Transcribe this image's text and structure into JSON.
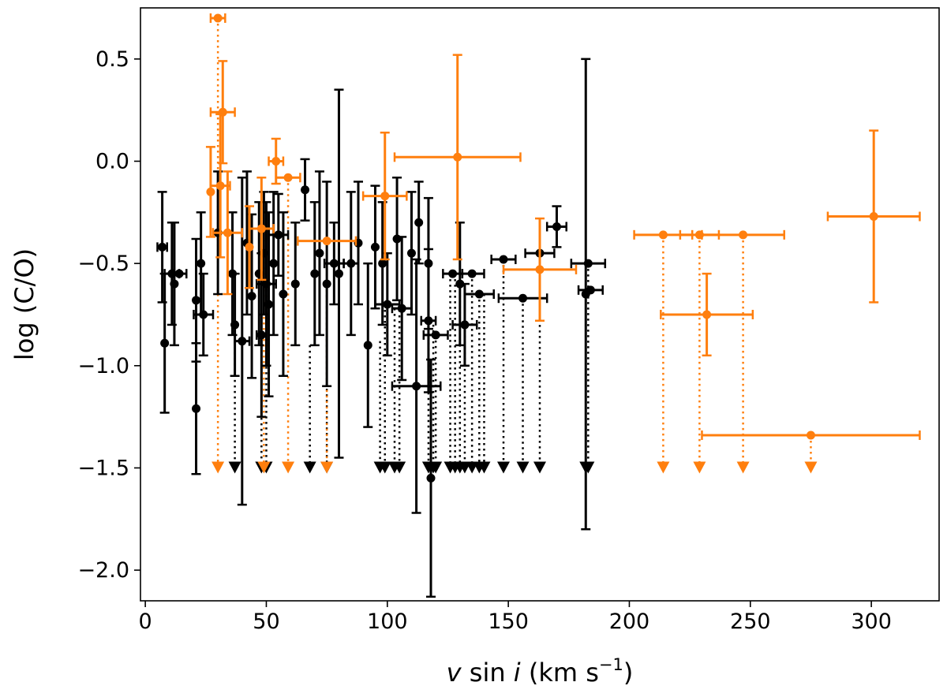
{
  "chart_data": {
    "type": "scatter",
    "xlabel": {
      "v": "v",
      "sin": "sin",
      "i": "i",
      "unit": "(km s",
      "exp": "−1",
      "close": ")"
    },
    "ylabel": "log (C/O)",
    "xlim": [
      -2,
      328
    ],
    "ylim": [
      -2.15,
      0.75
    ],
    "xticks": [
      0,
      50,
      100,
      150,
      200,
      250,
      300
    ],
    "xtick_labels": [
      "0",
      "50",
      "100",
      "150",
      "200",
      "250",
      "300"
    ],
    "yticks": [
      0.5,
      0.0,
      -0.5,
      -1.0,
      -1.5,
      -2.0
    ],
    "ytick_labels": [
      "0.5",
      "0.0",
      "−0.5",
      "−1.0",
      "−1.5",
      "−2.0"
    ],
    "grid": false,
    "colors": {
      "black": "#000000",
      "orange": "#ff7f0e"
    },
    "series": [
      {
        "color": "black",
        "points": [
          {
            "x": 8,
            "y": -0.89,
            "yerr": 0.34
          },
          {
            "x": 7,
            "y": -0.42,
            "yerr": 0.27,
            "xerr": 2
          },
          {
            "x": 11,
            "y": -0.55,
            "yerr": 0.25,
            "xerr": 3
          },
          {
            "x": 12,
            "y": -0.6,
            "yerr": 0.3
          },
          {
            "x": 14,
            "y": -0.55,
            "xerr": 3
          },
          {
            "x": 21,
            "y": -1.21,
            "yerr": 0.32
          },
          {
            "x": 21,
            "y": -0.68,
            "yerr": 0.3
          },
          {
            "x": 23,
            "y": -0.5,
            "yerr": 0.25
          },
          {
            "x": 24,
            "y": -0.75,
            "yerr": 0.2,
            "xerr": 4
          },
          {
            "x": 30,
            "y": -0.35,
            "yerr": 0.3
          },
          {
            "x": 36,
            "y": -0.55,
            "yerr": 0.3
          },
          {
            "x": 37,
            "y": -0.8,
            "yerr": 0.25
          },
          {
            "x": 40,
            "y": -0.88,
            "yerr": 0.8,
            "xerr": 3
          },
          {
            "x": 42,
            "y": -0.4,
            "yerr": 0.35
          },
          {
            "x": 44,
            "y": -0.66,
            "yerr": 0.4
          },
          {
            "x": 47,
            "y": -0.55,
            "yerr": 0.35
          },
          {
            "x": 48,
            "y": -0.85,
            "yerr": 0.4,
            "xerr": 2
          },
          {
            "x": 49,
            "y": -0.45,
            "yerr": 0.3
          },
          {
            "x": 50,
            "y": -0.6,
            "yerr": 0.4,
            "xerr": 4
          },
          {
            "x": 51,
            "y": -0.7,
            "yerr": 0.45
          },
          {
            "x": 53,
            "y": -0.5,
            "yerr": 0.35
          },
          {
            "x": 55,
            "y": -0.36,
            "yerr": 0.2,
            "xerr": 4
          },
          {
            "x": 57,
            "y": -0.65,
            "yerr": 0.4
          },
          {
            "x": 62,
            "y": -0.6,
            "yerr": 0.3
          },
          {
            "x": 66,
            "y": -0.14,
            "yerr": 0.15
          },
          {
            "x": 70,
            "y": -0.55,
            "yerr": 0.35
          },
          {
            "x": 72,
            "y": -0.45,
            "yerr": 0.4
          },
          {
            "x": 75,
            "y": -0.6,
            "yerr": 0.5
          },
          {
            "x": 78,
            "y": -0.5,
            "yerr": 0.2,
            "xerr": 4
          },
          {
            "x": 80,
            "y": -0.55,
            "yerr": 0.9
          },
          {
            "x": 85,
            "y": -0.5,
            "yerr": 0.35,
            "xerr": 3
          },
          {
            "x": 88,
            "y": -0.4,
            "yerr": 0.3
          },
          {
            "x": 92,
            "y": -0.9,
            "yerr": 0.4
          },
          {
            "x": 95,
            "y": -0.42,
            "yerr": 0.3
          },
          {
            "x": 98,
            "y": -0.5,
            "yerr": 0.3
          },
          {
            "x": 100,
            "y": -0.7,
            "yerr": 0.25,
            "xerr": 5
          },
          {
            "x": 104,
            "y": -0.38,
            "yerr": 0.3
          },
          {
            "x": 106,
            "y": -0.72,
            "yerr": 0.35,
            "xerr": 4
          },
          {
            "x": 110,
            "y": -0.45,
            "yerr": 0.3
          },
          {
            "x": 112,
            "y": -1.1,
            "yerr": 0.62,
            "xerr": 10
          },
          {
            "x": 113,
            "y": -0.3,
            "yerr": 0.2
          },
          {
            "x": 117,
            "y": -0.5,
            "yerr": 0.32
          },
          {
            "x": 117,
            "y": -0.78,
            "yerr": 0.35,
            "xerr": 3
          },
          {
            "x": 118,
            "y": -1.55,
            "yerr": 0.58
          },
          {
            "x": 120,
            "y": -0.85,
            "xerr": 5
          },
          {
            "x": 127,
            "y": -0.55,
            "xerr": 4
          },
          {
            "x": 130,
            "y": -0.6,
            "yerr": 0.3
          },
          {
            "x": 132,
            "y": -0.8,
            "yerr": 0.2,
            "xerr": 5
          },
          {
            "x": 135,
            "y": -0.55,
            "xerr": 5
          },
          {
            "x": 138,
            "y": -0.65,
            "xerr": 6
          },
          {
            "x": 148,
            "y": -0.48,
            "xerr": 5
          },
          {
            "x": 156,
            "y": -0.67,
            "xerr": 10
          },
          {
            "x": 163,
            "y": -0.45,
            "xerr": 6
          },
          {
            "x": 170,
            "y": -0.32,
            "yerr": 0.1,
            "xerr": 4
          },
          {
            "x": 182,
            "y": -0.65,
            "yerr": 1.15
          },
          {
            "x": 183,
            "y": -0.5,
            "xerr": 7
          },
          {
            "x": 184,
            "y": -0.63,
            "xerr": 5
          }
        ]
      },
      {
        "color": "orange",
        "points": [
          {
            "x": 30,
            "y": 0.7,
            "xerr": 3
          },
          {
            "x": 32,
            "y": 0.24,
            "yerr": 0.25,
            "xerr": 5
          },
          {
            "x": 31,
            "y": -0.12,
            "yerr": 0.35,
            "xerr": 4
          },
          {
            "x": 27,
            "y": -0.15,
            "yerr": 0.22
          },
          {
            "x": 34,
            "y": -0.35,
            "yerr": 0.3,
            "xerr": 6
          },
          {
            "x": 43,
            "y": -0.42,
            "yerr": 0.2
          },
          {
            "x": 48,
            "y": -0.33,
            "yerr": 0.25,
            "xerr": 5
          },
          {
            "x": 54,
            "y": 0.0,
            "yerr": 0.11,
            "xerr": 3
          },
          {
            "x": 59,
            "y": -0.08,
            "xerr": 5
          },
          {
            "x": 75,
            "y": -0.39,
            "xerr": 12
          },
          {
            "x": 99,
            "y": -0.17,
            "yerr": 0.31,
            "xerr": 9
          },
          {
            "x": 129,
            "y": 0.02,
            "yerr": 0.5,
            "xerr": 26
          },
          {
            "x": 163,
            "y": -0.53,
            "yerr": 0.25,
            "xerr": 15
          },
          {
            "x": 214,
            "y": -0.36,
            "xerr": 12
          },
          {
            "x": 229,
            "y": -0.36,
            "xerr": 8
          },
          {
            "x": 232,
            "y": -0.75,
            "yerr": 0.2,
            "xerr": 19
          },
          {
            "x": 247,
            "y": -0.36,
            "xerr": 17
          },
          {
            "x": 275,
            "y": -1.34,
            "xerr": 45
          },
          {
            "x": 301,
            "y": -0.27,
            "yerr": 0.42,
            "xerr": 19
          }
        ]
      }
    ],
    "upper_limits": {
      "y": -1.5,
      "black": [
        {
          "x": 37,
          "from": -0.8
        },
        {
          "x": 48,
          "from": -0.85
        },
        {
          "x": 50,
          "from": -0.6
        },
        {
          "x": 68,
          "from": -0.9
        },
        {
          "x": 75,
          "from": -0.6
        },
        {
          "x": 97,
          "from": -0.88
        },
        {
          "x": 99,
          "from": -0.7
        },
        {
          "x": 103,
          "from": -0.72
        },
        {
          "x": 105,
          "from": -0.7
        },
        {
          "x": 117,
          "from": -0.78
        },
        {
          "x": 119,
          "from": -0.8
        },
        {
          "x": 120,
          "from": -0.85
        },
        {
          "x": 126,
          "from": -0.55
        },
        {
          "x": 128,
          "from": -0.55
        },
        {
          "x": 130,
          "from": -0.6
        },
        {
          "x": 132,
          "from": -0.8
        },
        {
          "x": 135,
          "from": -0.55
        },
        {
          "x": 138,
          "from": -0.65
        },
        {
          "x": 140,
          "from": -0.65
        },
        {
          "x": 148,
          "from": -0.48
        },
        {
          "x": 156,
          "from": -0.67
        },
        {
          "x": 163,
          "from": -0.45
        },
        {
          "x": 182,
          "from": -0.65
        },
        {
          "x": 183,
          "from": -0.5
        }
      ],
      "orange": [
        {
          "x": 30,
          "from": 0.7
        },
        {
          "x": 49,
          "from": -0.33
        },
        {
          "x": 59,
          "from": -0.08
        },
        {
          "x": 75,
          "from": -0.39
        },
        {
          "x": 214,
          "from": -0.36
        },
        {
          "x": 229,
          "from": -0.36
        },
        {
          "x": 247,
          "from": -0.36
        },
        {
          "x": 275,
          "from": -1.34
        }
      ]
    }
  }
}
